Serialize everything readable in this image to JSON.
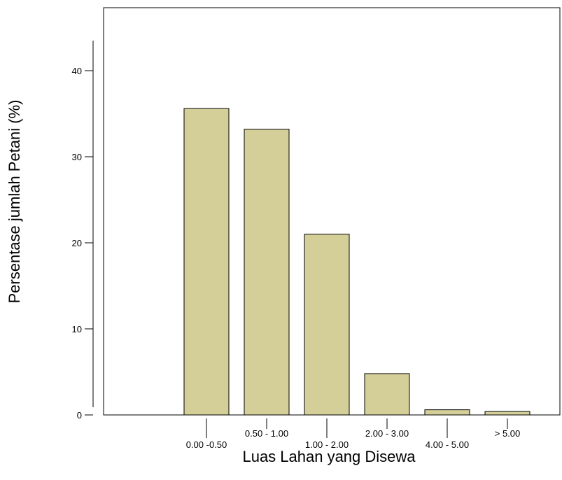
{
  "chart_data": {
    "type": "bar",
    "title": "",
    "xlabel": "Luas Lahan yang Disewa",
    "ylabel": "Persentase jumlah Petani (%)",
    "categories": [
      "0.00 -0.50",
      "0.50 - 1.00",
      "1.00 - 2.00",
      "2.00 - 3.00",
      "4.00 - 5.00",
      "> 5.00"
    ],
    "values": [
      35.6,
      33.2,
      21.0,
      4.8,
      0.6,
      0.4
    ],
    "ylim": [
      0,
      48
    ],
    "yticks": [
      0,
      10,
      20,
      30,
      40
    ],
    "grid": false,
    "legend": "none",
    "bar_color": "#d4cf98",
    "bar_edge_color": "#000000"
  }
}
